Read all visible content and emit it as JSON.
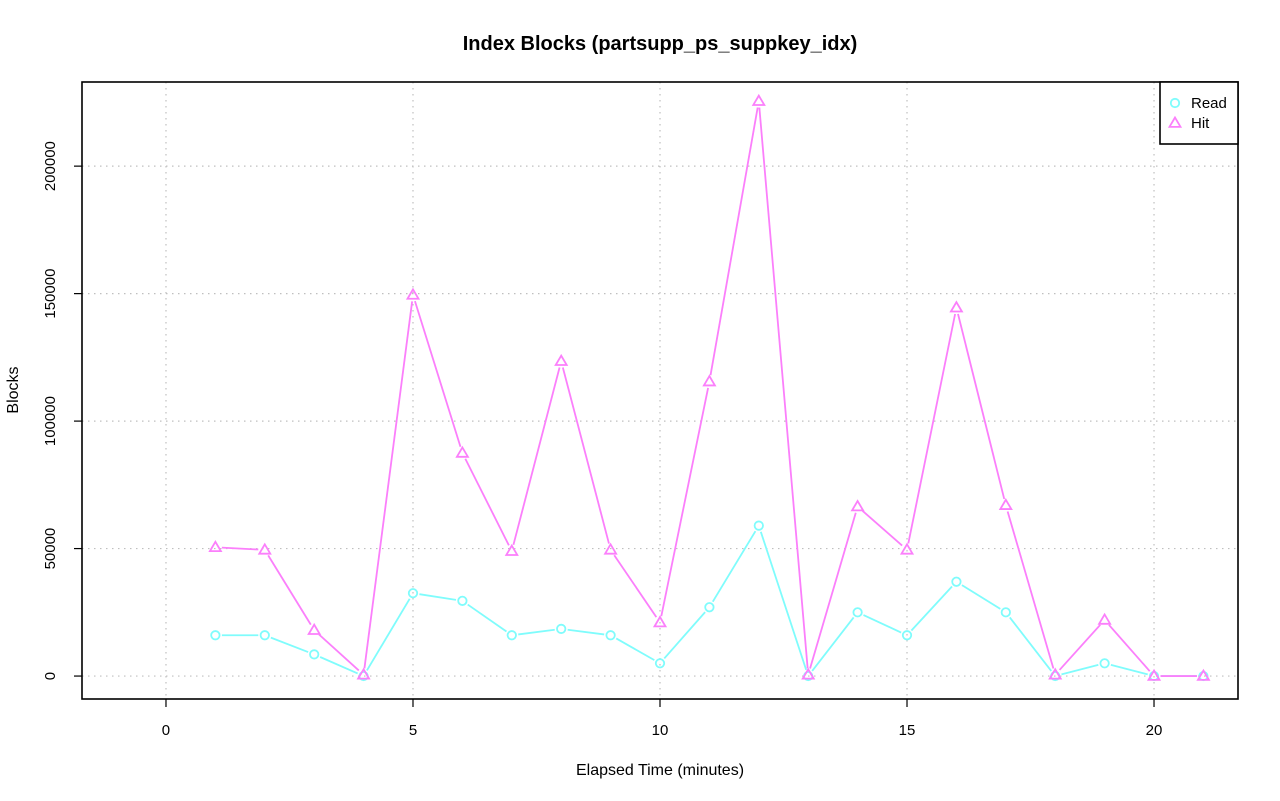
{
  "chart_data": {
    "type": "line",
    "title": "Index Blocks (partsupp_ps_suppkey_idx)",
    "xlabel": "Elapsed Time (minutes)",
    "ylabel": "Blocks",
    "xlim": [
      -1.7,
      21.7
    ],
    "ylim": [
      -9000,
      233000
    ],
    "x_ticks": [
      0,
      5,
      10,
      15,
      20
    ],
    "y_ticks": [
      0,
      50000,
      100000,
      150000,
      200000
    ],
    "grid": true,
    "legend_position": "top-right",
    "x": [
      1,
      2,
      3,
      4,
      5,
      6,
      7,
      8,
      9,
      10,
      11,
      12,
      13,
      14,
      15,
      16,
      17,
      18,
      19,
      20,
      21
    ],
    "series": [
      {
        "name": "Read",
        "color": "#7ffcfc",
        "marker": "circle",
        "values": [
          16000,
          16000,
          8500,
          0,
          32500,
          29500,
          16000,
          18500,
          16000,
          5000,
          27000,
          59000,
          0,
          25000,
          16000,
          37000,
          25000,
          0,
          5000,
          0,
          0
        ]
      },
      {
        "name": "Hit",
        "color": "#fb7ffb",
        "marker": "triangle",
        "values": [
          50500,
          49500,
          18000,
          500,
          149500,
          87500,
          49000,
          123500,
          49500,
          21000,
          115500,
          225500,
          500,
          66500,
          49500,
          144500,
          67000,
          500,
          22000,
          0,
          0
        ]
      }
    ]
  }
}
